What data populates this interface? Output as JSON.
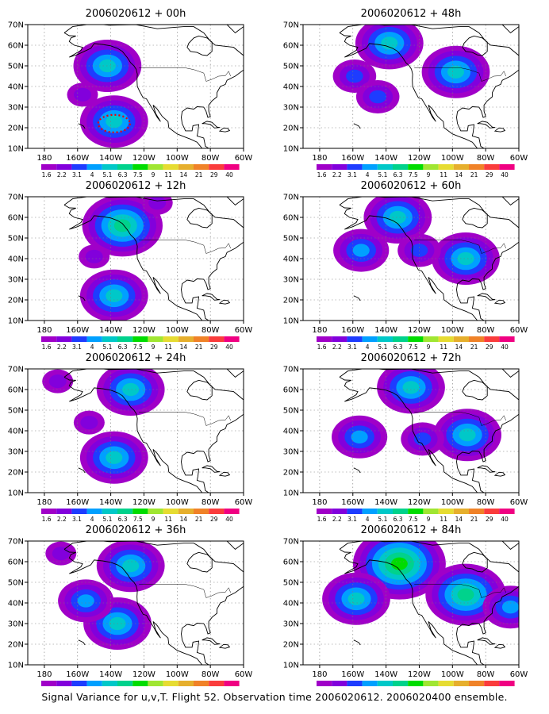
{
  "caption": "Signal Variance for u,v,T. Flight 52. Observation time 2006020612. 2006020400 ensemble.",
  "colors": {
    "scale": [
      "#a000c8",
      "#8200dc",
      "#1e3cff",
      "#00a0ff",
      "#00c8c8",
      "#00d28c",
      "#00dc00",
      "#a0e632",
      "#e6dc32",
      "#e6af2d",
      "#f08228",
      "#fa3c3c",
      "#f00082"
    ]
  },
  "chart_data": {
    "type": "heatmap",
    "panels": [
      {
        "title": "2006020612 + 00h",
        "forecast_hour": 0,
        "blobs": [
          {
            "lon": -142,
            "lat": 50,
            "level": 4
          },
          {
            "lon": -138,
            "lat": 23,
            "level": 4
          },
          {
            "lon": -157,
            "lat": 36,
            "level": 1
          }
        ],
        "marker_ring": {
          "lon": -138,
          "lat": 22,
          "color": "#f00000"
        }
      },
      {
        "title": "2006020612 + 12h",
        "forecast_hour": 12,
        "blobs": [
          {
            "lon": -133,
            "lat": 56,
            "level": 5
          },
          {
            "lon": -138,
            "lat": 22,
            "level": 4
          },
          {
            "lon": -150,
            "lat": 41,
            "level": 1
          },
          {
            "lon": -112,
            "lat": 67,
            "level": 1
          }
        ]
      },
      {
        "title": "2006020612 + 24h",
        "forecast_hour": 24,
        "blobs": [
          {
            "lon": -128,
            "lat": 60,
            "level": 4
          },
          {
            "lon": -138,
            "lat": 27,
            "level": 4
          },
          {
            "lon": -153,
            "lat": 44,
            "level": 1
          },
          {
            "lon": -172,
            "lat": 64,
            "level": 1
          }
        ]
      },
      {
        "title": "2006020612 + 36h",
        "forecast_hour": 36,
        "blobs": [
          {
            "lon": -128,
            "lat": 58,
            "level": 4
          },
          {
            "lon": -136,
            "lat": 30,
            "level": 4
          },
          {
            "lon": -155,
            "lat": 41,
            "level": 3
          },
          {
            "lon": -170,
            "lat": 64,
            "level": 1
          }
        ]
      },
      {
        "title": "2006020612 + 48h",
        "forecast_hour": 48,
        "blobs": [
          {
            "lon": -138,
            "lat": 61,
            "level": 4
          },
          {
            "lon": -98,
            "lat": 47,
            "level": 4
          },
          {
            "lon": -159,
            "lat": 45,
            "level": 2
          },
          {
            "lon": -145,
            "lat": 35,
            "level": 2
          }
        ]
      },
      {
        "title": "2006020612 + 60h",
        "forecast_hour": 60,
        "blobs": [
          {
            "lon": -133,
            "lat": 60,
            "level": 4
          },
          {
            "lon": -92,
            "lat": 40,
            "level": 4
          },
          {
            "lon": -155,
            "lat": 44,
            "level": 3
          },
          {
            "lon": -120,
            "lat": 44,
            "level": 2
          }
        ]
      },
      {
        "title": "2006020612 + 72h",
        "forecast_hour": 72,
        "blobs": [
          {
            "lon": -125,
            "lat": 61,
            "level": 4
          },
          {
            "lon": -91,
            "lat": 38,
            "level": 4
          },
          {
            "lon": -156,
            "lat": 37,
            "level": 3
          },
          {
            "lon": -118,
            "lat": 36,
            "level": 2
          }
        ]
      },
      {
        "title": "2006020612 + 84h",
        "forecast_hour": 84,
        "blobs": [
          {
            "lon": -132,
            "lat": 59,
            "level": 6
          },
          {
            "lon": -92,
            "lat": 44,
            "level": 5
          },
          {
            "lon": -158,
            "lat": 42,
            "level": 4
          },
          {
            "lon": -65,
            "lat": 38,
            "level": 3
          }
        ]
      }
    ],
    "x_ticks": [
      "180",
      "160W",
      "140W",
      "120W",
      "100W",
      "80W",
      "60W"
    ],
    "y_ticks": [
      "10N",
      "20N",
      "30N",
      "40N",
      "50N",
      "60N",
      "70N"
    ],
    "xlim": [
      -190,
      -60
    ],
    "ylim": [
      10,
      70
    ],
    "grid": true,
    "colorbar_labels": [
      "1.6",
      "2.2",
      "3.1",
      "4",
      "5.1",
      "6.3",
      "7.5",
      "9",
      "11",
      "14",
      "21",
      "29",
      "40"
    ]
  }
}
